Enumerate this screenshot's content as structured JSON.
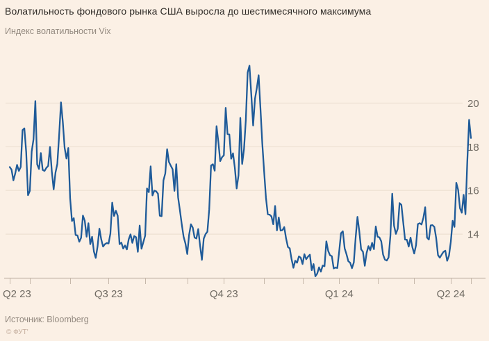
{
  "header": {
    "title": "Волатильность фондового рынка США выросла до шестимесячного максимума",
    "subtitle": "Индекс волатильности Vix"
  },
  "footer": {
    "source": "Источник: Bloomberg",
    "copyright": "© ФУТ'"
  },
  "colors": {
    "background": "#FBF0E5",
    "line": "#1F5B99",
    "grid": "#E9DCCE",
    "axis": "#C6B8AA",
    "title_text": "#302C28",
    "muted_text": "#948A80",
    "tick_text": "#6F6A62",
    "copyright_text": "#C4AD9D"
  },
  "chart_data": {
    "type": "line",
    "title": "Волатильность фондового рынка США выросла до шестимесячного максимума",
    "subtitle": "Индекс волатильности Vix",
    "source": "Источник: Bloomberg",
    "legend": false,
    "grid": true,
    "x_axis": {
      "labels": [
        {
          "text": "Q2 23",
          "index": 0,
          "align": "left"
        },
        {
          "text": "Q3 23",
          "index": 54,
          "align": "center"
        },
        {
          "text": "Q4 23",
          "index": 117,
          "align": "center"
        },
        {
          "text": "Q1 24",
          "index": 180,
          "align": "center"
        },
        {
          "text": "Q2 24",
          "index": 241,
          "align": "center"
        }
      ],
      "minor_tick_indices": [
        0,
        11,
        33,
        54,
        74,
        97,
        117,
        139,
        160,
        180,
        201,
        221,
        241,
        252
      ],
      "period": "Q2 2023 - Q2 2024, daily"
    },
    "y_axis": {
      "side": "right",
      "ticks": [
        14,
        16,
        18,
        20
      ],
      "range": [
        12,
        22.3
      ]
    },
    "series": [
      {
        "name": "Vix",
        "values": [
          17.07,
          16.95,
          16.46,
          16.77,
          17.17,
          16.89,
          17.07,
          18.76,
          18.84,
          17.76,
          15.78,
          15.98,
          17.78,
          18.34,
          20.09,
          17.19,
          16.98,
          17.71,
          16.94,
          16.89,
          17.03,
          17.12,
          17.99,
          16.87,
          16.05,
          16.81,
          17.21,
          18.53,
          20.03,
          19.14,
          17.95,
          17.46,
          17.94,
          15.65,
          14.6,
          14.73,
          13.96,
          13.94,
          13.65,
          13.83,
          14.85,
          14.61,
          13.88,
          14.5,
          13.54,
          13.88,
          13.2,
          12.91,
          13.44,
          14.25,
          13.76,
          13.43,
          13.54,
          13.59,
          13.57,
          14.02,
          15.44,
          14.83,
          15.07,
          14.84,
          13.54,
          13.61,
          13.34,
          13.48,
          13.3,
          13.76,
          13.99,
          13.6,
          13.91,
          13.86,
          13.19,
          14.39,
          13.33,
          13.63,
          13.93,
          16.09,
          15.92,
          17.1,
          15.77,
          15.99,
          15.96,
          15.85,
          14.84,
          14.82,
          16.46,
          16.78,
          17.89,
          17.3,
          17.13,
          16.97,
          15.98,
          17.2,
          15.68,
          15.08,
          14.45,
          13.88,
          13.57,
          13.09,
          13.96,
          14.45,
          14.3,
          13.84,
          13.8,
          14.23,
          13.48,
          12.82,
          13.79,
          14.0,
          14.11,
          15.14,
          17.14,
          17.2,
          16.9,
          18.94,
          18.22,
          17.34,
          17.52,
          17.61,
          19.78,
          18.58,
          18.56,
          17.45,
          17.7,
          17.03,
          16.09,
          16.69,
          19.32,
          17.21,
          17.88,
          19.22,
          21.4,
          21.71,
          20.37,
          18.97,
          20.19,
          20.68,
          21.27,
          19.75,
          18.14,
          16.87,
          15.66,
          14.91,
          14.89,
          14.81,
          14.45,
          15.29,
          14.17,
          14.76,
          14.16,
          14.18,
          14.32,
          13.8,
          13.41,
          13.35,
          12.85,
          12.46,
          12.78,
          12.69,
          12.98,
          12.92,
          12.63,
          13.08,
          12.85,
          12.97,
          13.06,
          12.35,
          12.63,
          12.07,
          12.19,
          12.48,
          12.28,
          12.56,
          12.53,
          13.67,
          13.23,
          13.03,
          12.99,
          12.43,
          12.47,
          12.45,
          13.2,
          14.04,
          14.13,
          13.35,
          13.08,
          12.76,
          12.69,
          12.44,
          12.7,
          13.84,
          14.79,
          14.13,
          13.3,
          13.19,
          12.55,
          13.14,
          13.45,
          13.26,
          13.6,
          13.31,
          14.35,
          13.88,
          13.85,
          13.67,
          13.06,
          12.83,
          12.79,
          12.93,
          13.93,
          15.85,
          14.38,
          14.01,
          14.24,
          15.42,
          15.34,
          14.54,
          13.75,
          13.74,
          13.43,
          13.84,
          13.4,
          13.11,
          13.49,
          14.46,
          14.5,
          14.44,
          14.74,
          15.23,
          13.84,
          13.75,
          14.4,
          14.41,
          14.33,
          13.82,
          13.04,
          12.92,
          13.06,
          13.19,
          13.24,
          12.78,
          13.01,
          13.65,
          14.61,
          14.33,
          16.35,
          16.03,
          15.19,
          14.98,
          15.8,
          14.91,
          17.31,
          19.23,
          18.4
        ]
      }
    ]
  }
}
